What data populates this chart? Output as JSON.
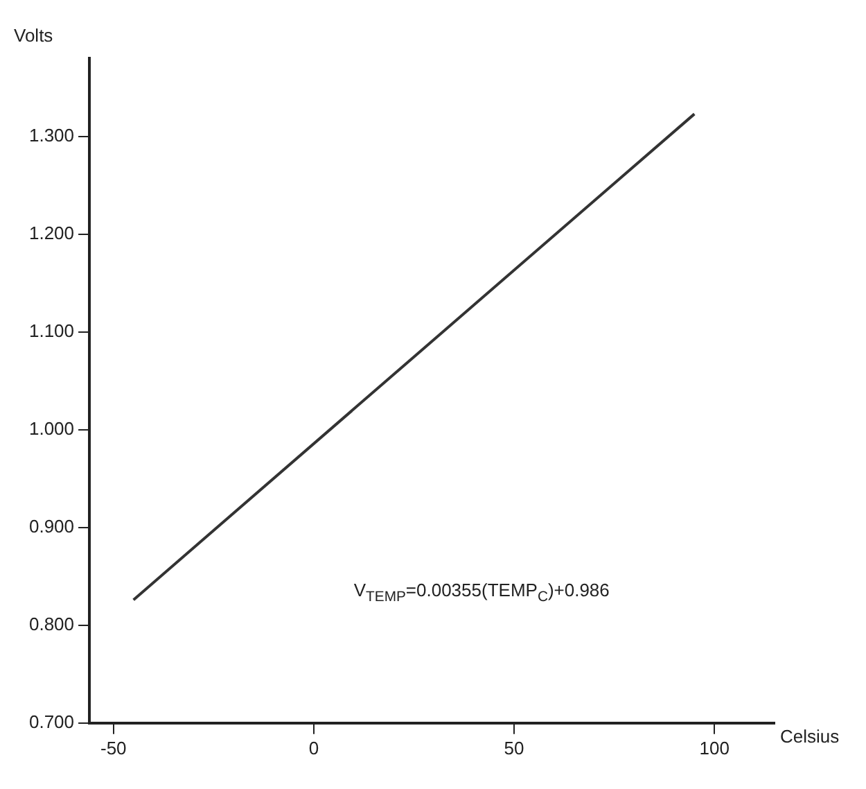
{
  "chart_data": {
    "type": "line",
    "xlabel": "Celsius",
    "ylabel": "Volts",
    "x": [
      -45,
      95
    ],
    "series": [
      {
        "color": "#333333",
        "values": [
          0.826,
          1.323
        ]
      }
    ],
    "xlim": [
      -56,
      115
    ],
    "xticks": [
      -50,
      0,
      50,
      100
    ],
    "ylim": [
      0.7,
      1.38
    ],
    "yticks": [
      {
        "value": 0.7,
        "label": "0.700"
      },
      {
        "value": 0.8,
        "label": "0.800"
      },
      {
        "value": 0.9,
        "label": "0.900"
      },
      {
        "value": 1.0,
        "label": "1.000"
      },
      {
        "value": 1.1,
        "label": "1.100"
      },
      {
        "value": 1.2,
        "label": "1.200"
      },
      {
        "value": 1.3,
        "label": "1.300"
      }
    ],
    "grid": false,
    "legend": false,
    "marker": "none",
    "line_style": "solid",
    "annotations": [
      "V$_{TEMP}$=0.00355(TEMP$_{C}$)+0.986"
    ]
  }
}
